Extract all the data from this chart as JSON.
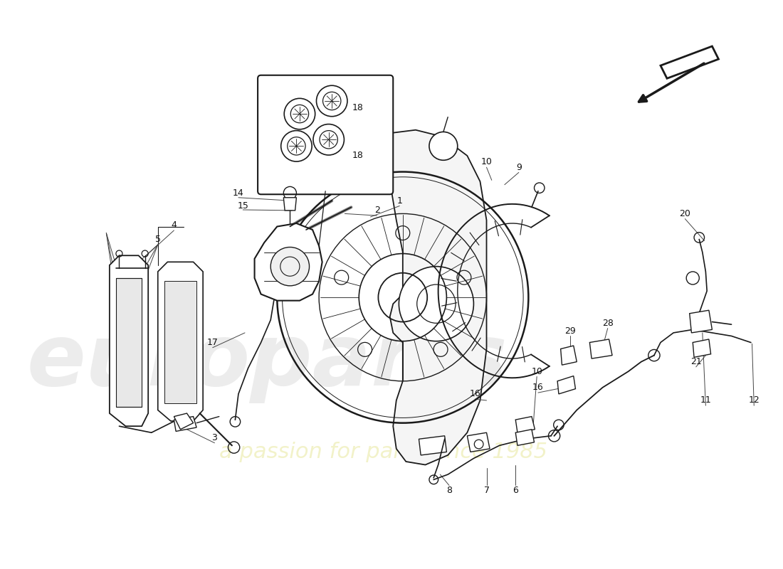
{
  "background_color": "#ffffff",
  "line_color": "#1a1a1a",
  "label_color": "#111111",
  "watermark_color_top": "#e0e0e0",
  "watermark_color_bottom": "#f0f0c0",
  "figsize": [
    11.0,
    8.0
  ],
  "dpi": 100
}
